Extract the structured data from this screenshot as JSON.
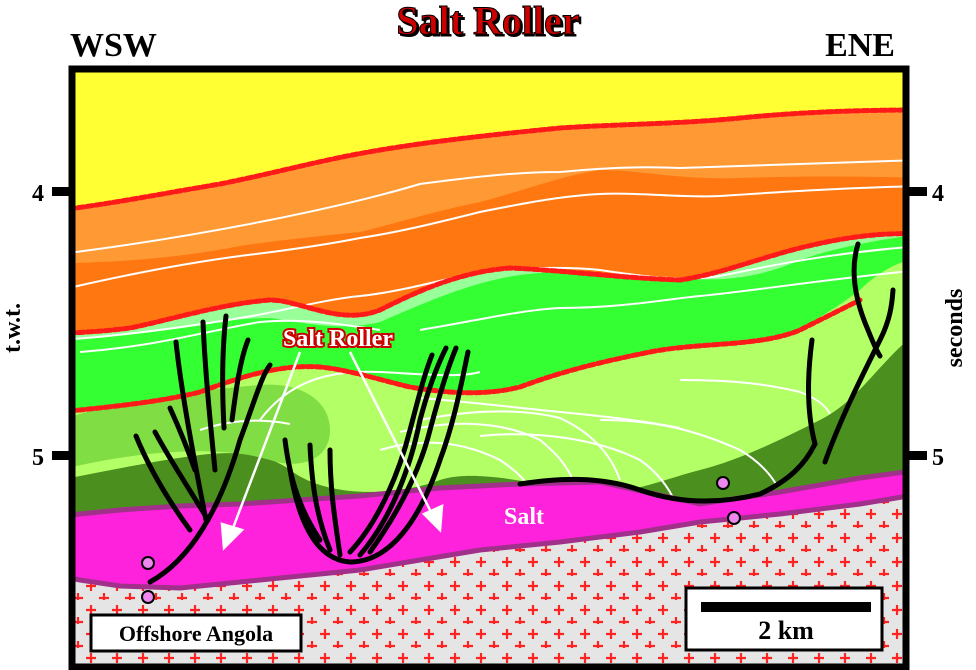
{
  "title": "Salt Roller",
  "left_direction": "WSW",
  "right_direction": "ENE",
  "left_axis_label": "t.w.t.",
  "right_axis_label": "seconds",
  "tick_labels": {
    "upper": "4",
    "lower": "5"
  },
  "annotations": {
    "salt_roller": "Salt Roller",
    "salt": "Salt"
  },
  "location_box": "Offshore Angola",
  "scale_bar_label": "2 km",
  "colors": {
    "yellow": "#ffff33",
    "light_orange": "#ffc48a",
    "orange": "#ff9933",
    "dark_orange": "#ff7711",
    "pale_green": "#99ff99",
    "bright_green": "#33ff33",
    "light_green": "#b3ff66",
    "mid_green": "#66cc33",
    "dark_green": "#4b8f1e",
    "salt": "#ff22dd",
    "basement": "#e5e5e5",
    "unconformity": "#ff1a1a",
    "title_red": "#cc0000"
  }
}
